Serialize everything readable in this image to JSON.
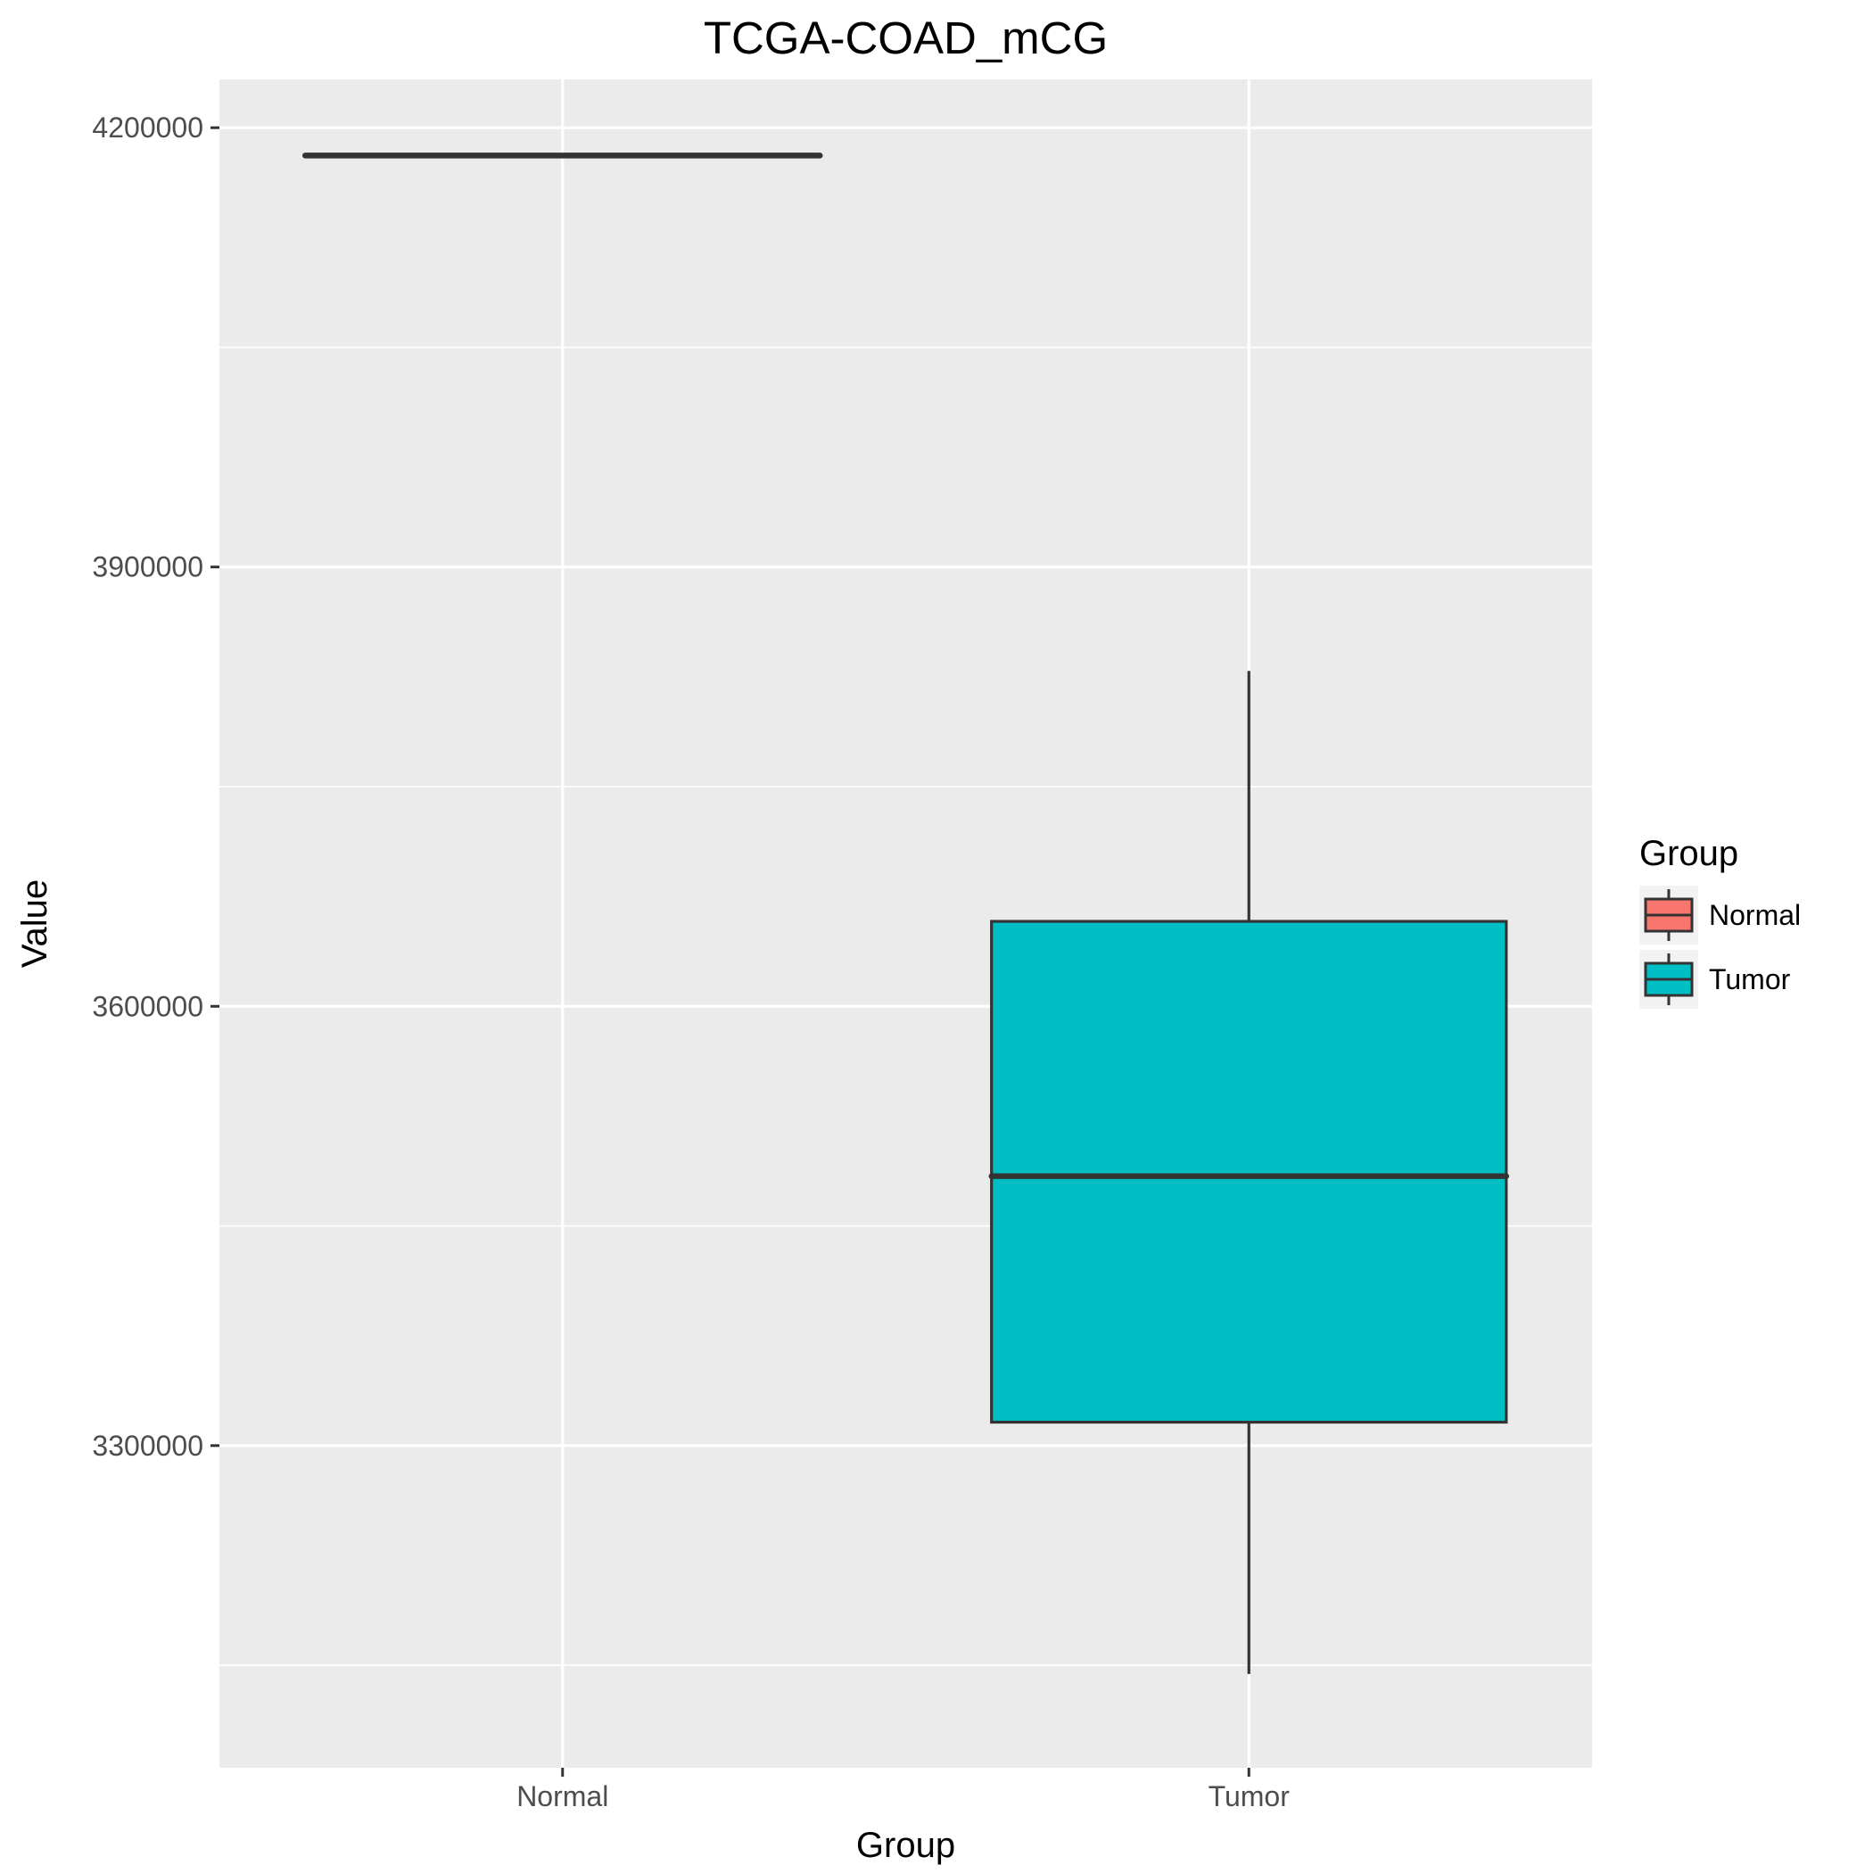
{
  "chart_data": {
    "type": "boxplot",
    "title": "TCGA-COAD_mCG",
    "xlabel": "Group",
    "ylabel": "Value",
    "categories": [
      "Normal",
      "Tumor"
    ],
    "ylim": [
      3080000,
      4233000
    ],
    "yticks": [
      3300000,
      3600000,
      3900000,
      4200000
    ],
    "ytick_labels": [
      "3300000",
      "3600000",
      "3900000",
      "4200000"
    ],
    "grid": true,
    "background": "#ebebeb",
    "legend": {
      "title": "Group",
      "position": "right",
      "entries": [
        "Normal",
        "Tumor"
      ]
    },
    "series": [
      {
        "name": "Normal",
        "color": "#f8766d",
        "min": 4181000,
        "q1": 4181000,
        "median": 4181000,
        "q3": 4181000,
        "max": 4181000
      },
      {
        "name": "Tumor",
        "color": "#00bfc4",
        "min": 3144000,
        "q1": 3316000,
        "median": 3484000,
        "q3": 3658000,
        "max": 3829000
      }
    ]
  }
}
